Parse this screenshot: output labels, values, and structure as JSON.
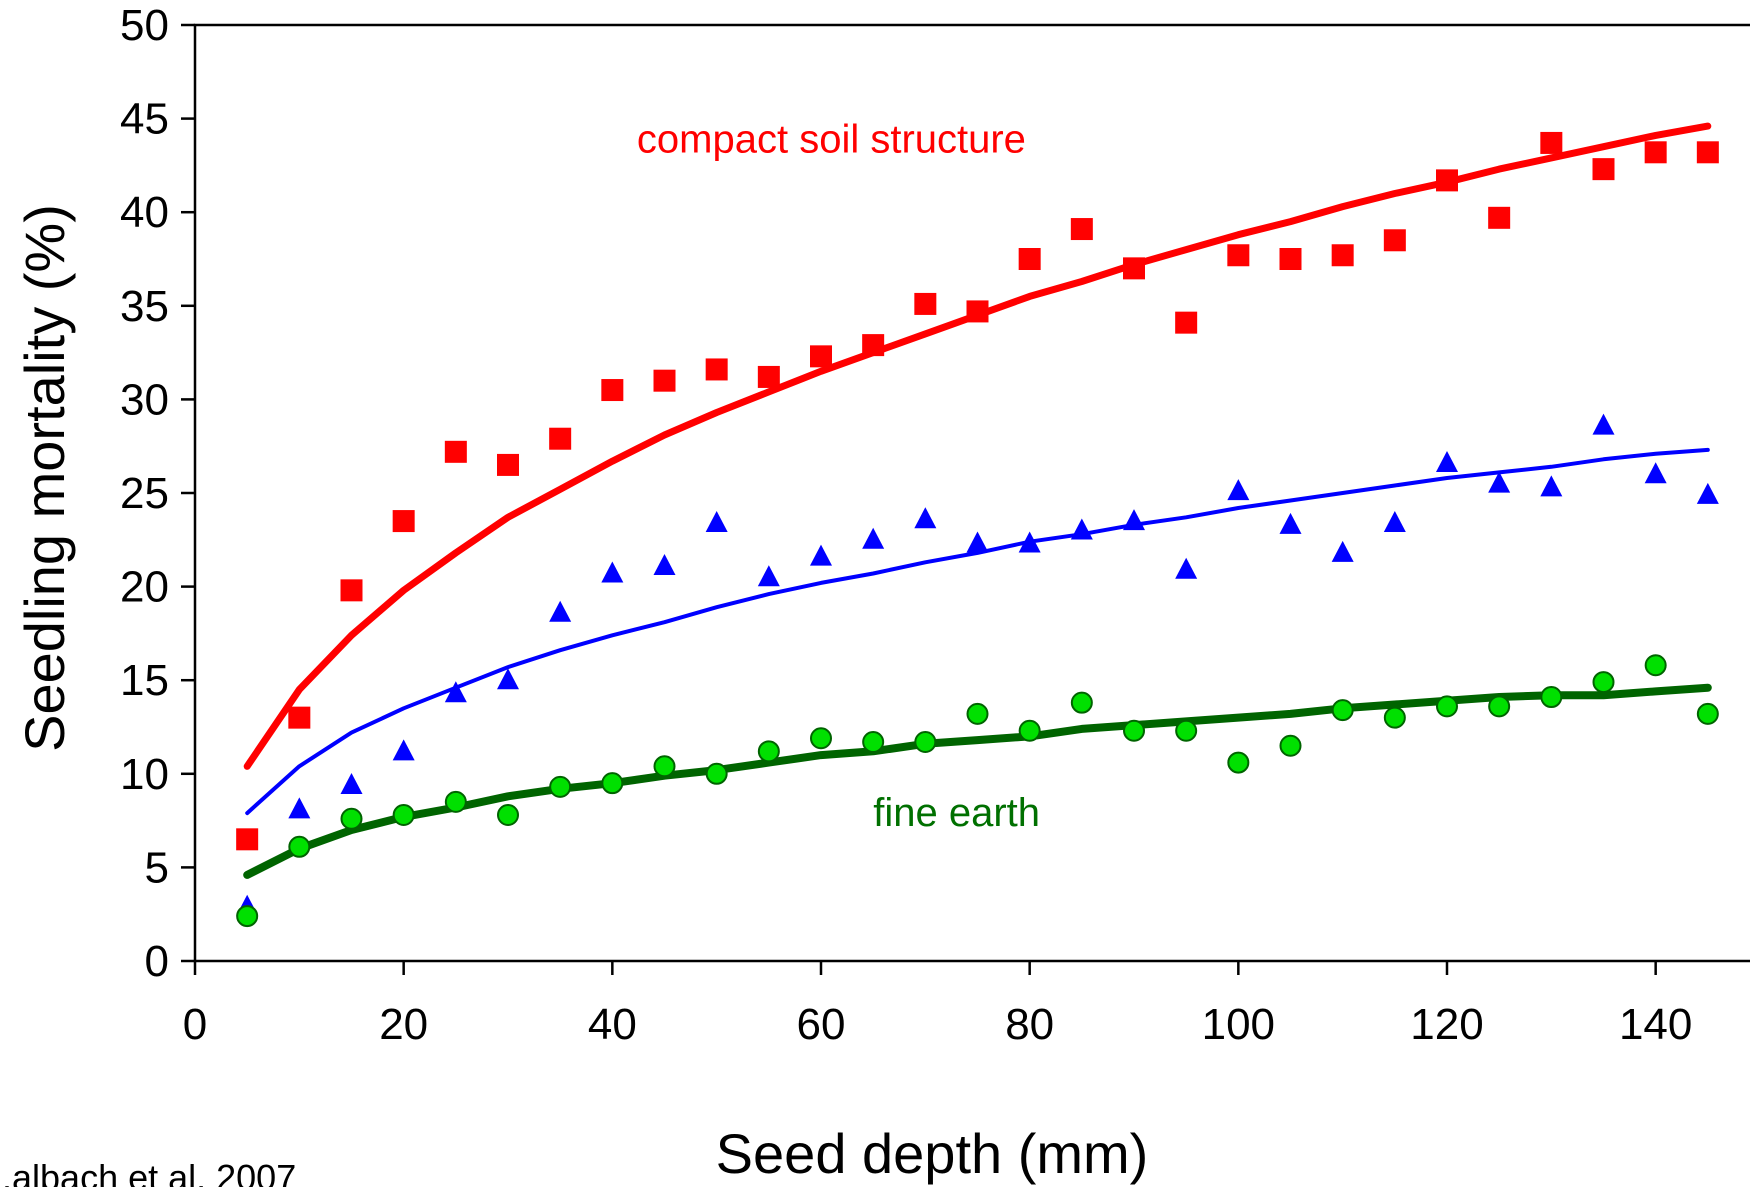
{
  "chart_data": {
    "type": "scatter",
    "title": "",
    "xlabel": "Seed depth (mm)",
    "ylabel": "Seedling mortality (%)",
    "xlim": [
      0,
      145
    ],
    "ylim": [
      0,
      50
    ],
    "xticks": [
      0,
      20,
      40,
      60,
      80,
      100,
      120,
      140
    ],
    "yticks": [
      0,
      5,
      10,
      15,
      20,
      25,
      30,
      35,
      40,
      45,
      50
    ],
    "grid": false,
    "legend": "none",
    "annotations": [
      {
        "text": "compact soil structure",
        "color": "#ff0000",
        "x": 61,
        "y": 43.2
      },
      {
        "text": "fine earth",
        "color": "#007000",
        "x": 73,
        "y": 7.2
      }
    ],
    "credit": "...albach et al. 2007",
    "x": [
      5,
      10,
      15,
      20,
      25,
      30,
      35,
      40,
      45,
      50,
      55,
      60,
      65,
      70,
      75,
      80,
      85,
      90,
      95,
      100,
      105,
      110,
      115,
      120,
      125,
      130,
      135,
      140,
      145
    ],
    "series": [
      {
        "marker": "square",
        "color": "#ff0000",
        "values": [
          6.5,
          13.0,
          19.8,
          23.5,
          27.2,
          26.5,
          27.9,
          30.5,
          31.0,
          31.6,
          31.2,
          32.3,
          32.9,
          35.1,
          34.7,
          37.5,
          39.1,
          37.0,
          34.1,
          37.7,
          37.5,
          37.7,
          38.5,
          41.7,
          39.7,
          43.7,
          42.3,
          43.2,
          43.2
        ],
        "fit": [
          10.4,
          14.5,
          17.4,
          19.8,
          21.8,
          23.7,
          25.2,
          26.7,
          28.1,
          29.3,
          30.4,
          31.5,
          32.5,
          33.5,
          34.5,
          35.5,
          36.3,
          37.2,
          38.0,
          38.8,
          39.5,
          40.3,
          41.0,
          41.6,
          42.3,
          42.9,
          43.5,
          44.1,
          44.6
        ],
        "fit_width": 7
      },
      {
        "marker": "triangle",
        "color": "#0000ff",
        "values": [
          2.9,
          8.1,
          9.4,
          11.2,
          14.3,
          15.0,
          18.6,
          20.7,
          21.1,
          23.4,
          20.5,
          21.6,
          22.5,
          23.6,
          22.3,
          22.3,
          23.0,
          23.5,
          20.9,
          25.1,
          23.3,
          21.8,
          23.4,
          26.6,
          25.5,
          25.3,
          28.6,
          26.0,
          24.9
        ],
        "fit": [
          7.9,
          10.4,
          12.2,
          13.5,
          14.6,
          15.7,
          16.6,
          17.4,
          18.1,
          18.9,
          19.6,
          20.2,
          20.7,
          21.3,
          21.8,
          22.4,
          22.8,
          23.3,
          23.7,
          24.2,
          24.6,
          25.0,
          25.4,
          25.8,
          26.1,
          26.4,
          26.8,
          27.1,
          27.3
        ],
        "fit_width": 4
      },
      {
        "marker": "circle",
        "color": "#00e000",
        "values": [
          2.4,
          6.1,
          7.6,
          7.8,
          8.5,
          7.8,
          9.3,
          9.5,
          10.4,
          10.0,
          11.2,
          11.9,
          11.7,
          11.7,
          13.2,
          12.3,
          13.8,
          12.3,
          12.3,
          10.6,
          11.5,
          13.4,
          13.0,
          13.6,
          13.6,
          14.1,
          14.9,
          15.8,
          13.2
        ],
        "fit": [
          4.6,
          6.0,
          7.0,
          7.7,
          8.2,
          8.8,
          9.2,
          9.5,
          9.9,
          10.2,
          10.6,
          11.0,
          11.2,
          11.6,
          11.8,
          12.0,
          12.4,
          12.6,
          12.8,
          13.0,
          13.2,
          13.5,
          13.7,
          13.9,
          14.1,
          14.2,
          14.2,
          14.4,
          14.6
        ],
        "fit_color": "#006400",
        "fit_width": 8
      }
    ]
  }
}
